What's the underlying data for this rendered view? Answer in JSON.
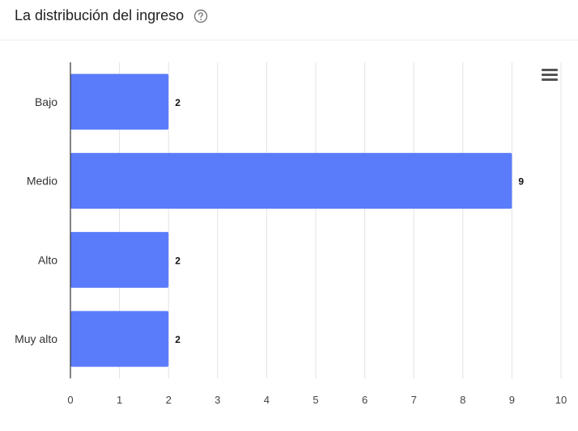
{
  "header": {
    "title": "La distribución del ingreso"
  },
  "icons": {
    "help": "help-circle-icon",
    "menu": "hamburger-menu-icon"
  },
  "colors": {
    "bar": "#5B7CFA",
    "grid": "#e3e3e3",
    "axis": "#333333"
  },
  "chart_data": {
    "type": "bar",
    "orientation": "horizontal",
    "categories": [
      "Bajo",
      "Medio",
      "Alto",
      "Muy alto"
    ],
    "values": [
      2,
      9,
      2,
      2
    ],
    "xlim": [
      0,
      10
    ],
    "xticks": [
      0,
      1,
      2,
      3,
      4,
      5,
      6,
      7,
      8,
      9,
      10
    ],
    "grid": true,
    "data_labels": true
  }
}
